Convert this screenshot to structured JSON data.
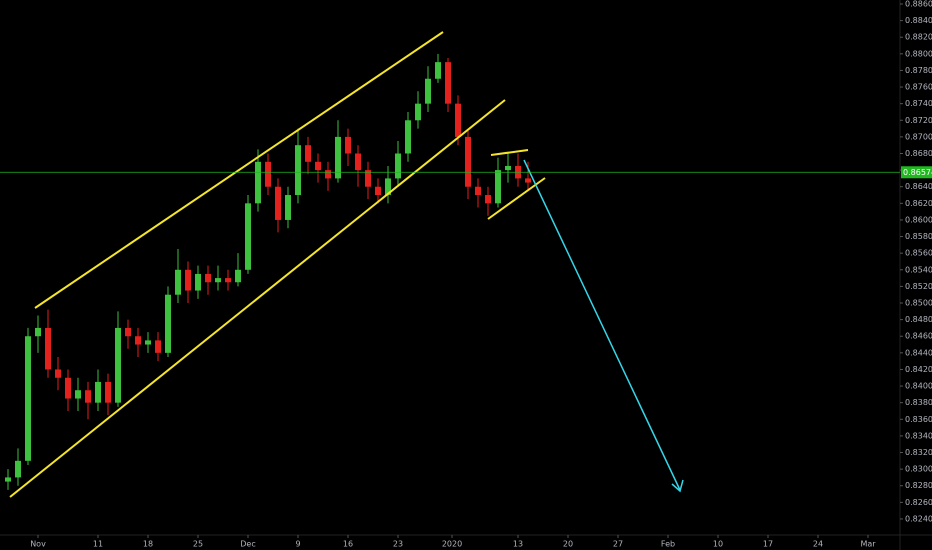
{
  "chart_data": {
    "type": "candlestick",
    "x": [
      0,
      1,
      2,
      3,
      4,
      5,
      6,
      7,
      8,
      9,
      10,
      11,
      12,
      13,
      14,
      15,
      16,
      17,
      18,
      19,
      20,
      21,
      22,
      23,
      24,
      25,
      26,
      27,
      28,
      29,
      30,
      31,
      32,
      33,
      34,
      35,
      36,
      37,
      38,
      39,
      40,
      41,
      42,
      43,
      44,
      45,
      46,
      47,
      48,
      49,
      50,
      51,
      52
    ],
    "open": [
      0.8285,
      0.829,
      0.831,
      0.846,
      0.847,
      0.842,
      0.841,
      0.8385,
      0.8395,
      0.838,
      0.8405,
      0.838,
      0.847,
      0.846,
      0.845,
      0.8455,
      0.844,
      0.851,
      0.854,
      0.8515,
      0.8535,
      0.8525,
      0.853,
      0.8525,
      0.854,
      0.862,
      0.867,
      0.864,
      0.86,
      0.863,
      0.869,
      0.867,
      0.866,
      0.865,
      0.87,
      0.868,
      0.866,
      0.864,
      0.863,
      0.865,
      0.868,
      0.872,
      0.874,
      0.877,
      0.879,
      0.874,
      0.87,
      0.864,
      0.863,
      0.862,
      0.866,
      0.8665,
      0.865
    ],
    "high": [
      0.83,
      0.8325,
      0.847,
      0.8485,
      0.8492,
      0.8435,
      0.842,
      0.841,
      0.8405,
      0.842,
      0.8415,
      0.849,
      0.848,
      0.847,
      0.8465,
      0.8465,
      0.852,
      0.8565,
      0.855,
      0.8545,
      0.8545,
      0.8545,
      0.854,
      0.856,
      0.863,
      0.8685,
      0.868,
      0.865,
      0.864,
      0.871,
      0.87,
      0.868,
      0.867,
      0.872,
      0.871,
      0.869,
      0.867,
      0.865,
      0.8665,
      0.8695,
      0.873,
      0.8755,
      0.8785,
      0.88,
      0.8795,
      0.875,
      0.871,
      0.865,
      0.864,
      0.8675,
      0.868,
      0.868,
      0.867
    ],
    "low": [
      0.8275,
      0.828,
      0.8305,
      0.844,
      0.841,
      0.8395,
      0.837,
      0.837,
      0.836,
      0.837,
      0.8365,
      0.8375,
      0.8445,
      0.8435,
      0.844,
      0.843,
      0.8435,
      0.85,
      0.85,
      0.8505,
      0.851,
      0.8515,
      0.8515,
      0.852,
      0.8535,
      0.861,
      0.863,
      0.8585,
      0.859,
      0.862,
      0.8655,
      0.8645,
      0.8635,
      0.8645,
      0.8665,
      0.864,
      0.8625,
      0.862,
      0.862,
      0.864,
      0.867,
      0.871,
      0.873,
      0.8765,
      0.873,
      0.869,
      0.8625,
      0.8615,
      0.8605,
      0.8615,
      0.8645,
      0.864,
      0.8635
    ],
    "close": [
      0.829,
      0.831,
      0.846,
      0.847,
      0.842,
      0.841,
      0.8385,
      0.8395,
      0.838,
      0.8405,
      0.838,
      0.847,
      0.846,
      0.845,
      0.8455,
      0.844,
      0.851,
      0.854,
      0.8515,
      0.8535,
      0.8525,
      0.853,
      0.8525,
      0.854,
      0.862,
      0.867,
      0.864,
      0.86,
      0.863,
      0.869,
      0.867,
      0.866,
      0.865,
      0.87,
      0.868,
      0.866,
      0.864,
      0.863,
      0.865,
      0.868,
      0.872,
      0.874,
      0.877,
      0.879,
      0.874,
      0.87,
      0.864,
      0.863,
      0.862,
      0.866,
      0.8665,
      0.865,
      0.8645
    ],
    "up_color": "#3ec13e",
    "down_color": "#e3211d",
    "last_price": {
      "value": 0.86574,
      "label": "0.86574"
    },
    "last_price_color": "#1fb81f",
    "xlim": [
      -0.8,
      89.2
    ],
    "xticks": [
      {
        "value": 3,
        "label": "Nov"
      },
      {
        "value": 9,
        "label": "11"
      },
      {
        "value": 14,
        "label": "18"
      },
      {
        "value": 19,
        "label": "25"
      },
      {
        "value": 24,
        "label": "Dec"
      },
      {
        "value": 29,
        "label": "9"
      },
      {
        "value": 34,
        "label": "16"
      },
      {
        "value": 39,
        "label": "23"
      },
      {
        "value": 44.4,
        "label": "2020"
      },
      {
        "value": 51,
        "label": "13"
      },
      {
        "value": 56,
        "label": "20"
      },
      {
        "value": 61,
        "label": "27"
      },
      {
        "value": 66,
        "label": "Feb"
      },
      {
        "value": 71,
        "label": "10"
      },
      {
        "value": 76,
        "label": "17"
      },
      {
        "value": 81,
        "label": "24"
      },
      {
        "value": 86,
        "label": "Mar"
      }
    ],
    "ylim": [
      0.82207,
      0.88648
    ],
    "yticks": [
      {
        "value": 0.824,
        "label": "0.82400"
      },
      {
        "value": 0.826,
        "label": "0.82600"
      },
      {
        "value": 0.828,
        "label": "0.82800"
      },
      {
        "value": 0.83,
        "label": "0.83000"
      },
      {
        "value": 0.832,
        "label": "0.83200"
      },
      {
        "value": 0.834,
        "label": "0.83400"
      },
      {
        "value": 0.836,
        "label": "0.83600"
      },
      {
        "value": 0.838,
        "label": "0.83800"
      },
      {
        "value": 0.84,
        "label": "0.84000"
      },
      {
        "value": 0.842,
        "label": "0.84200"
      },
      {
        "value": 0.844,
        "label": "0.84400"
      },
      {
        "value": 0.846,
        "label": "0.84600"
      },
      {
        "value": 0.848,
        "label": "0.84800"
      },
      {
        "value": 0.85,
        "label": "0.85000"
      },
      {
        "value": 0.852,
        "label": "0.85200"
      },
      {
        "value": 0.854,
        "label": "0.85400"
      },
      {
        "value": 0.856,
        "label": "0.85600"
      },
      {
        "value": 0.858,
        "label": "0.85800"
      },
      {
        "value": 0.86,
        "label": "0.86000"
      },
      {
        "value": 0.862,
        "label": "0.86200"
      },
      {
        "value": 0.864,
        "label": "0.86400"
      },
      {
        "value": 0.866,
        "label": "0.86600"
      },
      {
        "value": 0.868,
        "label": "0.86800"
      },
      {
        "value": 0.87,
        "label": "0.87000"
      },
      {
        "value": 0.872,
        "label": "0.87200"
      },
      {
        "value": 0.874,
        "label": "0.87400"
      },
      {
        "value": 0.876,
        "label": "0.87600"
      },
      {
        "value": 0.878,
        "label": "0.87800"
      },
      {
        "value": 0.88,
        "label": "0.88000"
      },
      {
        "value": 0.882,
        "label": "0.88200"
      },
      {
        "value": 0.884,
        "label": "0.88400"
      },
      {
        "value": 0.886,
        "label": "0.88600"
      }
    ],
    "grid": false
  }
}
